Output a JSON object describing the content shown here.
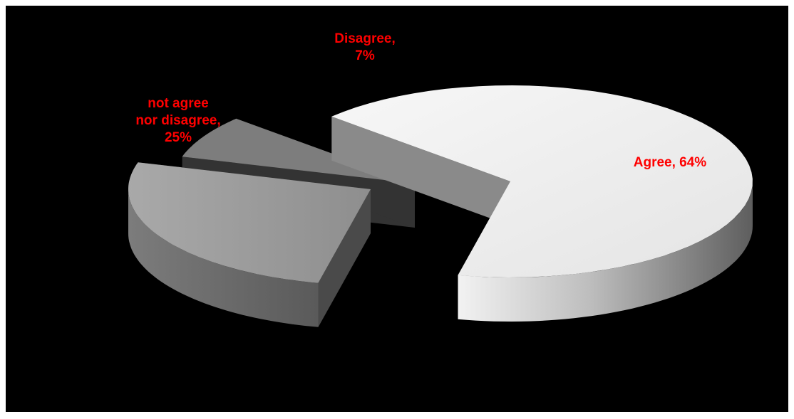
{
  "chart_data": {
    "type": "pie",
    "style": "3d-exploded",
    "title": "",
    "categories": [
      "Agree",
      "Disagree",
      "not agree nor disagree"
    ],
    "values": [
      64,
      7,
      25
    ],
    "unit": "%",
    "legend": "none",
    "label_color": "#ff0000",
    "background_color": "#000000",
    "slice_colors": [
      "#dcdcdc",
      "#7a7a7a",
      "#9a9a9a"
    ],
    "data_labels": [
      {
        "category": "Agree",
        "lines": [
          "Agree, 64%"
        ]
      },
      {
        "category": "Disagree",
        "lines": [
          "Disagree,",
          "7%"
        ]
      },
      {
        "category": "not agree nor disagree",
        "lines": [
          "not agree",
          "nor disagree,",
          "25%"
        ]
      }
    ]
  }
}
